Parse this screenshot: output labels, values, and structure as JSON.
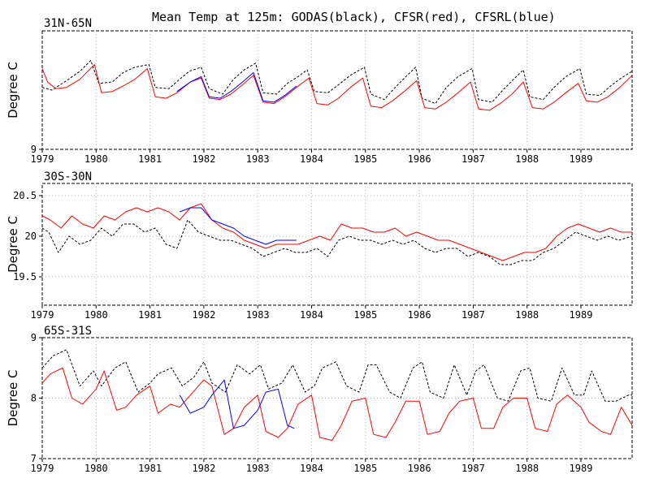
{
  "chart_data": {
    "type": "line",
    "title": "Mean Temp at 125m: GODAS(black), CFSR(red), CFSRL(blue)",
    "panels": [
      {
        "label": "31N-65N",
        "ylabel": "Degree C",
        "ylim": [
          9,
          13.4
        ],
        "yticks": [
          "9"
        ],
        "xlim": [
          1979,
          1989.95
        ],
        "xticks": [
          "1979",
          "1980",
          "1981",
          "1982",
          "1983",
          "1984",
          "1985",
          "1986",
          "1987",
          "1988",
          "1989"
        ],
        "grid": true,
        "series": [
          {
            "name": "GODAS",
            "color": "#000000",
            "dash": true,
            "x": [
              1979.0,
              1979.18,
              1979.45,
              1979.7,
              1979.9,
              1980.05,
              1980.3,
              1980.5,
              1980.72,
              1980.98,
              1981.1,
              1981.35,
              1981.55,
              1981.73,
              1981.95,
              1982.1,
              1982.35,
              1982.55,
              1982.75,
              1982.96,
              1983.1,
              1983.35,
              1983.55,
              1983.75,
              1983.92,
              1984.05,
              1984.3,
              1984.5,
              1984.72,
              1984.98,
              1985.1,
              1985.35,
              1985.55,
              1985.75,
              1985.93,
              1986.05,
              1986.3,
              1986.5,
              1986.72,
              1986.98,
              1987.1,
              1987.35,
              1987.55,
              1987.75,
              1987.93,
              1988.05,
              1988.3,
              1988.5,
              1988.72,
              1988.98,
              1989.1,
              1989.35,
              1989.55,
              1989.75,
              1989.95
            ],
            "y": [
              11.3,
              11.2,
              11.55,
              11.9,
              12.3,
              11.45,
              11.5,
              11.85,
              12.05,
              12.15,
              11.3,
              11.25,
              11.6,
              11.9,
              12.05,
              11.25,
              11.05,
              11.6,
              11.95,
              12.2,
              11.1,
              11.05,
              11.45,
              11.7,
              11.95,
              11.15,
              11.1,
              11.4,
              11.75,
              12.05,
              11.05,
              10.85,
              11.3,
              11.7,
              12.05,
              10.9,
              10.7,
              11.3,
              11.7,
              12.0,
              10.85,
              10.75,
              11.2,
              11.6,
              11.95,
              10.95,
              10.85,
              11.3,
              11.7,
              12.0,
              11.05,
              11.0,
              11.35,
              11.65,
              11.9
            ]
          },
          {
            "name": "CFSR",
            "color": "#ff0000",
            "dash": false,
            "x": [
              1979.0,
              1979.1,
              1979.25,
              1979.45,
              1979.7,
              1979.97,
              1980.1,
              1980.3,
              1980.5,
              1980.72,
              1980.95,
              1981.1,
              1981.3,
              1981.5,
              1981.75,
              1981.95,
              1982.1,
              1982.3,
              1982.5,
              1982.72,
              1982.92,
              1983.1,
              1983.3,
              1983.5,
              1983.72,
              1983.95,
              1984.1,
              1984.3,
              1984.5,
              1984.72,
              1984.95,
              1985.1,
              1985.3,
              1985.5,
              1985.72,
              1985.95,
              1986.1,
              1986.3,
              1986.5,
              1986.72,
              1986.95,
              1987.1,
              1987.3,
              1987.5,
              1987.72,
              1987.93,
              1988.1,
              1988.3,
              1988.5,
              1988.72,
              1988.95,
              1989.1,
              1989.3,
              1989.5,
              1989.72,
              1989.95
            ],
            "y": [
              12.0,
              11.5,
              11.25,
              11.3,
              11.6,
              12.15,
              11.1,
              11.15,
              11.35,
              11.6,
              12.0,
              10.95,
              10.9,
              11.1,
              11.5,
              11.65,
              10.9,
              10.85,
              11.05,
              11.4,
              11.75,
              10.75,
              10.7,
              10.95,
              11.3,
              11.65,
              10.7,
              10.65,
              10.9,
              11.3,
              11.65,
              10.6,
              10.55,
              10.8,
              11.15,
              11.55,
              10.55,
              10.5,
              10.75,
              11.1,
              11.5,
              10.5,
              10.45,
              10.7,
              11.05,
              11.5,
              10.55,
              10.5,
              10.75,
              11.1,
              11.45,
              10.8,
              10.75,
              10.95,
              11.3,
              11.75
            ]
          },
          {
            "name": "CFSRL",
            "color": "#0000ff",
            "dash": false,
            "x": [
              1981.5,
              1981.75,
              1981.95,
              1982.1,
              1982.3,
              1982.5,
              1982.72,
              1982.92,
              1983.1,
              1983.3,
              1983.5,
              1983.72
            ],
            "y": [
              11.15,
              11.5,
              11.7,
              10.95,
              10.9,
              11.15,
              11.5,
              11.85,
              10.8,
              10.75,
              11.0,
              11.35
            ]
          }
        ]
      },
      {
        "label": "30S-30N",
        "ylabel": "Degree C",
        "ylim": [
          19.15,
          20.65
        ],
        "yticks": [
          "19.5",
          "20",
          "20.5"
        ],
        "xlim": [
          1979,
          1989.95
        ],
        "xticks": [
          "1979",
          "1980",
          "1981",
          "1982",
          "1983",
          "1984",
          "1985",
          "1986",
          "1987",
          "1988",
          "1989"
        ],
        "grid": true,
        "series": [
          {
            "name": "GODAS",
            "color": "#000000",
            "dash": true,
            "x": [
              1979.0,
              1979.12,
              1979.3,
              1979.5,
              1979.7,
              1979.9,
              1980.1,
              1980.3,
              1980.5,
              1980.7,
              1980.9,
              1981.1,
              1981.3,
              1981.5,
              1981.7,
              1981.9,
              1982.1,
              1982.3,
              1982.5,
              1982.7,
              1982.9,
              1983.1,
              1983.3,
              1983.5,
              1983.7,
              1983.9,
              1984.1,
              1984.3,
              1984.5,
              1984.7,
              1984.9,
              1985.1,
              1985.3,
              1985.5,
              1985.7,
              1985.9,
              1986.1,
              1986.3,
              1986.5,
              1986.7,
              1986.9,
              1987.1,
              1987.3,
              1987.5,
              1987.7,
              1987.9,
              1988.1,
              1988.3,
              1988.5,
              1988.7,
              1988.9,
              1989.1,
              1989.3,
              1989.5,
              1989.7,
              1989.95
            ],
            "y": [
              20.1,
              20.05,
              19.8,
              20.0,
              19.9,
              19.95,
              20.1,
              20.0,
              20.15,
              20.15,
              20.05,
              20.1,
              19.9,
              19.85,
              20.2,
              20.05,
              20.0,
              19.95,
              19.95,
              19.9,
              19.85,
              19.75,
              19.8,
              19.85,
              19.8,
              19.8,
              19.85,
              19.75,
              19.95,
              20.0,
              19.95,
              19.95,
              19.9,
              19.95,
              19.9,
              19.95,
              19.85,
              19.8,
              19.85,
              19.85,
              19.75,
              19.8,
              19.75,
              19.65,
              19.65,
              19.7,
              19.7,
              19.8,
              19.85,
              19.95,
              20.05,
              20.0,
              19.95,
              20.0,
              19.95,
              20.0
            ]
          },
          {
            "name": "CFSR",
            "color": "#ff0000",
            "dash": false,
            "x": [
              1979.0,
              1979.15,
              1979.35,
              1979.55,
              1979.75,
              1979.95,
              1980.15,
              1980.35,
              1980.55,
              1980.75,
              1980.95,
              1981.15,
              1981.35,
              1981.55,
              1981.75,
              1981.95,
              1982.15,
              1982.35,
              1982.55,
              1982.75,
              1982.95,
              1983.15,
              1983.35,
              1983.55,
              1983.75,
              1983.95,
              1984.15,
              1984.35,
              1984.55,
              1984.75,
              1984.95,
              1985.15,
              1985.35,
              1985.55,
              1985.75,
              1985.95,
              1986.15,
              1986.35,
              1986.55,
              1986.75,
              1986.95,
              1987.15,
              1987.35,
              1987.55,
              1987.75,
              1987.95,
              1988.15,
              1988.35,
              1988.55,
              1988.75,
              1988.95,
              1989.15,
              1989.35,
              1989.55,
              1989.75,
              1989.95
            ],
            "y": [
              20.25,
              20.2,
              20.1,
              20.25,
              20.15,
              20.1,
              20.25,
              20.2,
              20.3,
              20.35,
              20.3,
              20.35,
              20.3,
              20.2,
              20.35,
              20.4,
              20.2,
              20.1,
              20.05,
              19.95,
              19.9,
              19.85,
              19.9,
              19.9,
              19.9,
              19.95,
              20.0,
              19.95,
              20.15,
              20.1,
              20.1,
              20.05,
              20.05,
              20.1,
              20.0,
              20.05,
              20.0,
              19.95,
              19.95,
              19.9,
              19.85,
              19.8,
              19.75,
              19.7,
              19.75,
              19.8,
              19.8,
              19.85,
              20.0,
              20.1,
              20.15,
              20.1,
              20.05,
              20.1,
              20.05,
              20.05
            ]
          },
          {
            "name": "CFSRL",
            "color": "#0000ff",
            "dash": false,
            "x": [
              1981.55,
              1981.75,
              1981.95,
              1982.15,
              1982.35,
              1982.55,
              1982.75,
              1982.95,
              1983.15,
              1983.35,
              1983.55,
              1983.72
            ],
            "y": [
              20.3,
              20.35,
              20.35,
              20.2,
              20.15,
              20.1,
              20.0,
              19.95,
              19.9,
              19.95,
              19.95,
              19.95
            ]
          }
        ]
      },
      {
        "label": "65S-31S",
        "ylabel": "Degree C",
        "ylim": [
          7,
          9
        ],
        "yticks": [
          "7",
          "8",
          "9"
        ],
        "xlim": [
          1979,
          1989.95
        ],
        "xticks": [
          "1979",
          "1980",
          "1981",
          "1982",
          "1983",
          "1984",
          "1985",
          "1986",
          "1987",
          "1988",
          "1989"
        ],
        "grid": true,
        "series": [
          {
            "name": "GODAS",
            "color": "#000000",
            "dash": true,
            "x": [
              1979.0,
              1979.2,
              1979.45,
              1979.7,
              1979.95,
              1980.1,
              1980.35,
              1980.55,
              1980.78,
              1981.0,
              1981.15,
              1981.4,
              1981.6,
              1981.82,
              1982.0,
              1982.15,
              1982.4,
              1982.62,
              1982.85,
              1983.05,
              1983.2,
              1983.45,
              1983.65,
              1983.88,
              1984.05,
              1984.2,
              1984.45,
              1984.65,
              1984.88,
              1985.05,
              1985.2,
              1985.45,
              1985.65,
              1985.88,
              1986.05,
              1986.2,
              1986.45,
              1986.65,
              1986.88,
              1987.05,
              1987.2,
              1987.45,
              1987.65,
              1987.88,
              1988.05,
              1988.2,
              1988.45,
              1988.65,
              1988.88,
              1989.05,
              1989.2,
              1989.45,
              1989.65,
              1989.88,
              1989.95
            ],
            "y": [
              8.5,
              8.7,
              8.8,
              8.2,
              8.45,
              8.2,
              8.5,
              8.6,
              8.1,
              8.25,
              8.4,
              8.5,
              8.2,
              8.35,
              8.6,
              8.25,
              8.1,
              8.55,
              8.4,
              8.55,
              8.15,
              8.25,
              8.55,
              8.1,
              8.2,
              8.5,
              8.6,
              8.2,
              8.1,
              8.55,
              8.55,
              8.1,
              8.0,
              8.5,
              8.6,
              8.1,
              8.0,
              8.55,
              8.05,
              8.45,
              8.55,
              8.0,
              7.95,
              8.45,
              8.5,
              8.0,
              7.95,
              8.5,
              8.05,
              8.05,
              8.45,
              7.95,
              7.95,
              8.05,
              8.05
            ]
          },
          {
            "name": "CFSR",
            "color": "#ff0000",
            "dash": false,
            "x": [
              1979.0,
              1979.15,
              1979.38,
              1979.55,
              1979.75,
              1980.0,
              1980.15,
              1980.38,
              1980.55,
              1980.75,
              1981.0,
              1981.15,
              1981.38,
              1981.55,
              1981.75,
              1982.0,
              1982.15,
              1982.38,
              1982.55,
              1982.75,
              1983.0,
              1983.15,
              1983.38,
              1983.55,
              1983.75,
              1984.0,
              1984.15,
              1984.38,
              1984.55,
              1984.75,
              1985.0,
              1985.15,
              1985.38,
              1985.55,
              1985.75,
              1986.0,
              1986.15,
              1986.38,
              1986.55,
              1986.75,
              1987.0,
              1987.15,
              1987.38,
              1987.55,
              1987.75,
              1988.0,
              1988.15,
              1988.38,
              1988.55,
              1988.75,
              1989.0,
              1989.15,
              1989.38,
              1989.55,
              1989.75,
              1989.95
            ],
            "y": [
              8.25,
              8.4,
              8.5,
              8.0,
              7.9,
              8.15,
              8.45,
              7.8,
              7.85,
              8.05,
              8.2,
              7.75,
              7.9,
              7.85,
              8.05,
              8.3,
              8.2,
              7.4,
              7.5,
              7.85,
              8.05,
              7.45,
              7.35,
              7.5,
              7.9,
              8.05,
              7.35,
              7.3,
              7.55,
              7.95,
              8.0,
              7.4,
              7.35,
              7.6,
              7.95,
              7.95,
              7.4,
              7.45,
              7.75,
              7.95,
              8.0,
              7.5,
              7.5,
              7.85,
              8.0,
              8.0,
              7.5,
              7.45,
              7.9,
              8.05,
              7.85,
              7.6,
              7.45,
              7.4,
              7.85,
              7.55
            ]
          },
          {
            "name": "CFSRL",
            "color": "#0000ff",
            "dash": false,
            "x": [
              1981.55,
              1981.75,
              1982.0,
              1982.15,
              1982.38,
              1982.55,
              1982.75,
              1983.0,
              1983.15,
              1983.38,
              1983.55,
              1983.68
            ],
            "y": [
              8.05,
              7.75,
              7.85,
              8.05,
              8.3,
              7.5,
              7.55,
              7.8,
              8.1,
              8.15,
              7.55,
              7.5
            ]
          }
        ]
      }
    ]
  }
}
